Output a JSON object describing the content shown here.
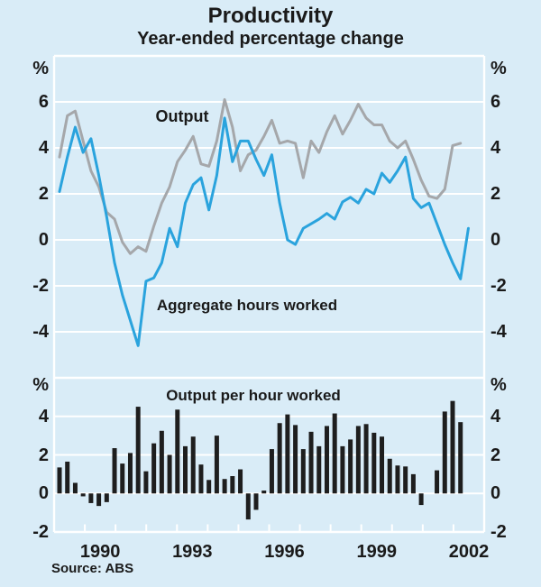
{
  "chart_data": {
    "type": "combo",
    "title": "Productivity",
    "subtitle": "Year-ended percentage change",
    "source": "Source: ABS",
    "background": "#d9ecf7",
    "grid_color": "#ffffff",
    "text_color": "#1a1a1a",
    "x": {
      "frequency": "quarterly",
      "axis_year_range": [
        1989,
        2003
      ],
      "year_labels": [
        "1990",
        "1993",
        "1996",
        "1999",
        "2002"
      ],
      "quarters": [
        "1989Q1",
        "1989Q2",
        "1989Q3",
        "1989Q4",
        "1990Q1",
        "1990Q2",
        "1990Q3",
        "1990Q4",
        "1991Q1",
        "1991Q2",
        "1991Q3",
        "1991Q4",
        "1992Q1",
        "1992Q2",
        "1992Q3",
        "1992Q4",
        "1993Q1",
        "1993Q2",
        "1993Q3",
        "1993Q4",
        "1994Q1",
        "1994Q2",
        "1994Q3",
        "1994Q4",
        "1995Q1",
        "1995Q2",
        "1995Q3",
        "1995Q4",
        "1996Q1",
        "1996Q2",
        "1996Q3",
        "1996Q4",
        "1997Q1",
        "1997Q2",
        "1997Q3",
        "1997Q4",
        "1998Q1",
        "1998Q2",
        "1998Q3",
        "1998Q4",
        "1999Q1",
        "1999Q2",
        "1999Q3",
        "1999Q4",
        "2000Q1",
        "2000Q2",
        "2000Q3",
        "2000Q4",
        "2001Q1",
        "2001Q2",
        "2001Q3",
        "2001Q4",
        "2002Q1"
      ]
    },
    "panels": [
      {
        "type": "line",
        "ylim": [
          -6,
          8
        ],
        "yticks": [
          "6",
          "4",
          "2",
          "0",
          "-2",
          "-4"
        ],
        "ytick_values": [
          6,
          4,
          2,
          0,
          -2,
          -4
        ],
        "unit_label": "%",
        "grid": true,
        "series": [
          {
            "name": "Output",
            "color": "#a5a7aa",
            "values": [
              3.6,
              5.4,
              5.6,
              4.3,
              3.0,
              2.3,
              1.2,
              0.9,
              -0.1,
              -0.6,
              -0.3,
              -0.5,
              0.6,
              1.6,
              2.3,
              3.4,
              3.9,
              4.5,
              3.3,
              3.2,
              4.3,
              6.1,
              4.9,
              3.0,
              3.7,
              3.9,
              4.5,
              5.2,
              4.2,
              4.3,
              4.2,
              2.7,
              4.3,
              3.8,
              4.7,
              5.4,
              4.6,
              5.2,
              5.9,
              5.3,
              5.0,
              5.0,
              4.3,
              4.0,
              4.3,
              3.5,
              2.6,
              1.9,
              1.8,
              2.2,
              4.1,
              4.2,
              null
            ]
          },
          {
            "name": "Aggregate hours worked",
            "color": "#2aa3dd",
            "values": [
              2.1,
              3.6,
              4.9,
              3.8,
              4.4,
              2.8,
              1.0,
              -1.0,
              -2.4,
              -3.5,
              -4.6,
              -1.8,
              -1.65,
              -1.0,
              0.5,
              -0.3,
              1.6,
              2.4,
              2.7,
              1.3,
              2.8,
              5.3,
              3.4,
              4.3,
              4.3,
              3.5,
              2.8,
              3.7,
              1.6,
              0.0,
              -0.2,
              0.5,
              0.7,
              0.9,
              1.15,
              0.9,
              1.65,
              1.85,
              1.6,
              2.2,
              2.0,
              2.9,
              2.5,
              3.0,
              3.6,
              1.8,
              1.4,
              1.6,
              0.7,
              -0.2,
              -1.0,
              -1.7,
              0.5
            ]
          }
        ]
      },
      {
        "type": "bar",
        "ylim": [
          -2,
          6
        ],
        "yticks": [
          "4",
          "2",
          "0",
          "-2"
        ],
        "ytick_values": [
          4,
          2,
          0,
          -2
        ],
        "unit_label": "%",
        "grid": true,
        "series": [
          {
            "name": "Output per hour worked",
            "color": "#1e1e1e",
            "values": [
              1.35,
              1.65,
              0.55,
              -0.15,
              -0.5,
              -0.65,
              -0.45,
              2.35,
              1.55,
              2.1,
              4.5,
              1.15,
              2.6,
              3.25,
              2.0,
              4.35,
              2.45,
              2.95,
              1.5,
              0.7,
              3.0,
              0.75,
              0.9,
              1.25,
              -1.35,
              -0.85,
              0.15,
              2.3,
              3.65,
              4.1,
              3.55,
              2.3,
              3.2,
              2.45,
              3.5,
              4.15,
              2.45,
              2.8,
              3.5,
              3.6,
              3.15,
              2.95,
              1.8,
              1.45,
              1.4,
              1.0,
              -0.6,
              0.0,
              1.2,
              4.25,
              4.8,
              3.7
            ]
          }
        ]
      }
    ]
  }
}
